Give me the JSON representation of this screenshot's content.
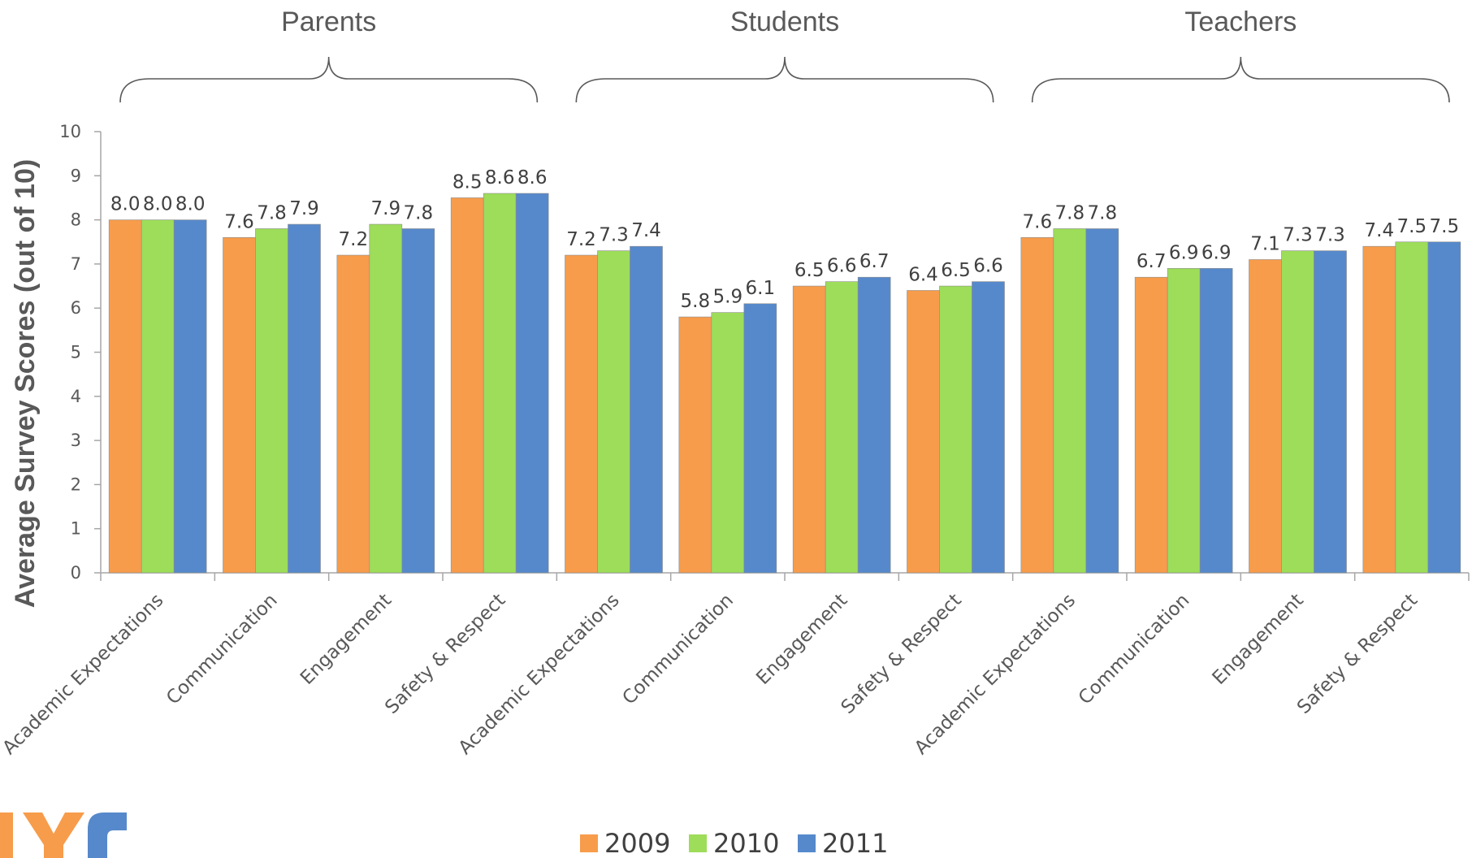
{
  "chart_data": {
    "type": "bar",
    "ylabel": "Average Survey Scores (out of 10)",
    "ylim": [
      0,
      10
    ],
    "yticks": [
      0,
      1,
      2,
      3,
      4,
      5,
      6,
      7,
      8,
      9,
      10
    ],
    "groups": [
      {
        "label": "Parents",
        "categories": [
          "Academic Expectations",
          "Communication",
          "Engagement",
          "Safety & Respect"
        ]
      },
      {
        "label": "Students",
        "categories": [
          "Academic Expectations",
          "Communication",
          "Engagement",
          "Safety & Respect"
        ]
      },
      {
        "label": "Teachers",
        "categories": [
          "Academic Expectations",
          "Communication",
          "Engagement",
          "Safety & Respect"
        ]
      }
    ],
    "categories": [
      "Academic Expectations",
      "Communication",
      "Engagement",
      "Safety & Respect",
      "Academic Expectations",
      "Communication",
      "Engagement",
      "Safety & Respect",
      "Academic Expectations",
      "Communication",
      "Engagement",
      "Safety & Respect"
    ],
    "series": [
      {
        "name": "2009",
        "color": "#f79c4b",
        "values": [
          8.0,
          7.6,
          7.2,
          8.5,
          7.2,
          5.8,
          6.5,
          6.4,
          7.6,
          6.7,
          7.1,
          7.4
        ]
      },
      {
        "name": "2010",
        "color": "#9ddd59",
        "values": [
          8.0,
          7.8,
          7.9,
          8.6,
          7.3,
          5.9,
          6.6,
          6.5,
          7.8,
          6.9,
          7.3,
          7.5
        ]
      },
      {
        "name": "2011",
        "color": "#5689cb",
        "values": [
          8.0,
          7.9,
          7.8,
          8.6,
          7.4,
          6.1,
          6.7,
          6.6,
          7.8,
          6.9,
          7.3,
          7.5
        ]
      }
    ],
    "data_labels": true,
    "legend": "bottom-center",
    "grid": false
  }
}
